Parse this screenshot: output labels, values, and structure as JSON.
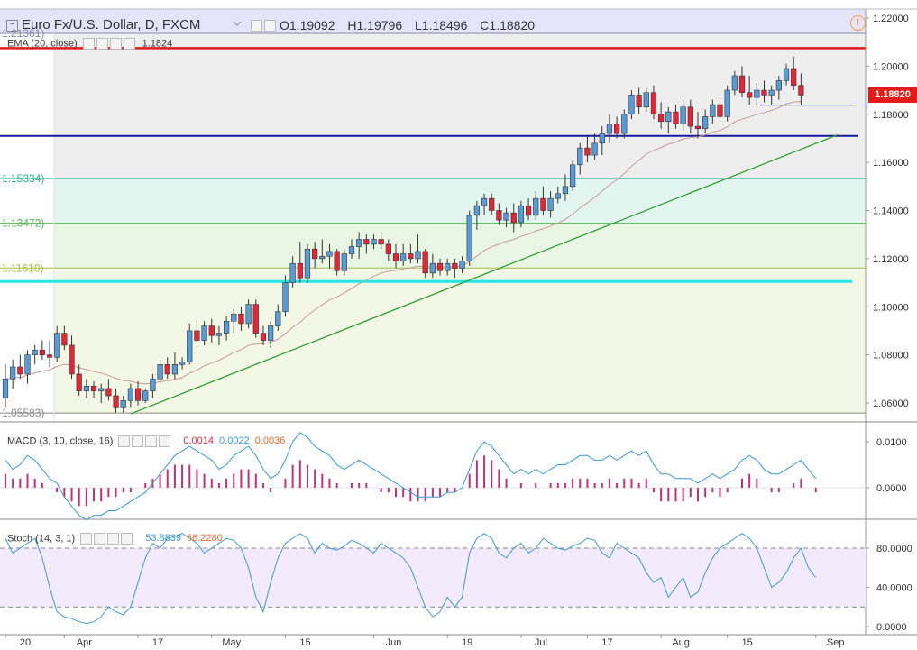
{
  "header": {
    "title": "Euro Fx/U.S. Dollar, D, FXCM",
    "ohlc": {
      "o": "O1.19092",
      "h": "H1.19796",
      "l": "L1.18496",
      "c": "C1.18820"
    },
    "collapse_glyph": "−",
    "alert_glyph": "!"
  },
  "price_tag": "1.18820",
  "ema": {
    "label": "EMA (20, close)",
    "value": "1.1824"
  },
  "macd": {
    "label": "MACD (3, 10, close, 16)",
    "v1": "0.0014",
    "v2": "0.0022",
    "v3": "0.0036"
  },
  "stoch": {
    "label": "Stoch (14, 3, 1)",
    "v1": "53.8839",
    "v2": "56.2280"
  },
  "icons": [
    "collapse-icon",
    "alert-icon",
    "settings-icon",
    "hide-icon",
    "close-icon"
  ],
  "colors": {
    "up": "#5b9bd5",
    "down": "#e3263a",
    "ema": "#c99a9a",
    "macd_line": "#3a9ad9",
    "macd_hist": "#c1307d",
    "stoch_k": "#3a9ad9",
    "red_line": "#e31b1b",
    "blue_line": "#1a1aa0",
    "cyan_line": "#25e6e6",
    "trend": "#2a9a2a"
  },
  "chart_data": {
    "type": "candlestick",
    "price_axis": {
      "min": 1.05,
      "max": 1.22,
      "ticks": [
        "1.22000",
        "1.20000",
        "1.18000",
        "1.16000",
        "1.14000",
        "1.12000",
        "1.10000",
        "1.08000",
        "1.06000"
      ]
    },
    "x_ticks": [
      {
        "label": "20",
        "i": 0
      },
      {
        "label": "Apr",
        "i": 8
      },
      {
        "label": "17",
        "i": 18
      },
      {
        "label": "May",
        "i": 28
      },
      {
        "label": "15",
        "i": 38
      },
      {
        "label": "Jun",
        "i": 50
      },
      {
        "label": "19",
        "i": 60
      },
      {
        "label": "Jul",
        "i": 70
      },
      {
        "label": "17",
        "i": 79
      },
      {
        "label": "Aug",
        "i": 89
      },
      {
        "label": "15",
        "i": 98
      },
      {
        "label": "Sep",
        "i": 110
      }
    ],
    "fib_levels": [
      {
        "label": "1.21361)",
        "value": 1.21361
      },
      {
        "label": "1.15334)",
        "value": 1.15334
      },
      {
        "label": "1.13472)",
        "value": 1.13472
      },
      {
        "label": "1.11610)",
        "value": 1.1161
      },
      {
        "label": "1.05583)",
        "value": 1.05583
      }
    ],
    "horizontal_lines": {
      "red": 1.2075,
      "blue": 1.171,
      "cyan": 1.1105,
      "short_blue": 1.1838
    },
    "trendline": {
      "from": {
        "i": 17,
        "price": 1.0555
      },
      "to": {
        "i": 113,
        "price": 1.1715
      }
    },
    "ohlc": [
      [
        1.062,
        1.076,
        1.058,
        1.07
      ],
      [
        1.07,
        1.078,
        1.066,
        1.075
      ],
      [
        1.075,
        1.08,
        1.07,
        1.072
      ],
      [
        1.072,
        1.082,
        1.068,
        1.08
      ],
      [
        1.08,
        1.084,
        1.076,
        1.082
      ],
      [
        1.082,
        1.086,
        1.078,
        1.08
      ],
      [
        1.08,
        1.086,
        1.075,
        1.079
      ],
      [
        1.079,
        1.092,
        1.077,
        1.089
      ],
      [
        1.089,
        1.092,
        1.082,
        1.084
      ],
      [
        1.084,
        1.088,
        1.07,
        1.072
      ],
      [
        1.072,
        1.076,
        1.063,
        1.065
      ],
      [
        1.065,
        1.07,
        1.062,
        1.067
      ],
      [
        1.067,
        1.069,
        1.062,
        1.065
      ],
      [
        1.065,
        1.068,
        1.06,
        1.066
      ],
      [
        1.066,
        1.07,
        1.061,
        1.063
      ],
      [
        1.063,
        1.066,
        1.056,
        1.058
      ],
      [
        1.058,
        1.063,
        1.056,
        1.061
      ],
      [
        1.061,
        1.068,
        1.058,
        1.066
      ],
      [
        1.066,
        1.069,
        1.059,
        1.061
      ],
      [
        1.061,
        1.066,
        1.06,
        1.065
      ],
      [
        1.065,
        1.072,
        1.062,
        1.07
      ],
      [
        1.07,
        1.078,
        1.068,
        1.076
      ],
      [
        1.076,
        1.079,
        1.07,
        1.072
      ],
      [
        1.072,
        1.081,
        1.07,
        1.076
      ],
      [
        1.076,
        1.079,
        1.074,
        1.077
      ],
      [
        1.077,
        1.093,
        1.076,
        1.09
      ],
      [
        1.09,
        1.094,
        1.083,
        1.086
      ],
      [
        1.086,
        1.094,
        1.084,
        1.092
      ],
      [
        1.092,
        1.095,
        1.085,
        1.088
      ],
      [
        1.088,
        1.092,
        1.084,
        1.089
      ],
      [
        1.089,
        1.096,
        1.086,
        1.094
      ],
      [
        1.094,
        1.099,
        1.089,
        1.097
      ],
      [
        1.097,
        1.1,
        1.09,
        1.093
      ],
      [
        1.093,
        1.103,
        1.091,
        1.101
      ],
      [
        1.101,
        1.103,
        1.087,
        1.089
      ],
      [
        1.089,
        1.092,
        1.084,
        1.086
      ],
      [
        1.086,
        1.094,
        1.083,
        1.092
      ],
      [
        1.092,
        1.101,
        1.09,
        1.098
      ],
      [
        1.098,
        1.113,
        1.096,
        1.11
      ],
      [
        1.11,
        1.121,
        1.108,
        1.118
      ],
      [
        1.118,
        1.127,
        1.11,
        1.112
      ],
      [
        1.112,
        1.126,
        1.11,
        1.124
      ],
      [
        1.124,
        1.127,
        1.116,
        1.12
      ],
      [
        1.12,
        1.128,
        1.118,
        1.121
      ],
      [
        1.121,
        1.126,
        1.116,
        1.123
      ],
      [
        1.123,
        1.124,
        1.113,
        1.115
      ],
      [
        1.115,
        1.124,
        1.113,
        1.122
      ],
      [
        1.122,
        1.128,
        1.12,
        1.125
      ],
      [
        1.125,
        1.131,
        1.12,
        1.128
      ],
      [
        1.128,
        1.13,
        1.122,
        1.126
      ],
      [
        1.126,
        1.13,
        1.124,
        1.128
      ],
      [
        1.128,
        1.131,
        1.124,
        1.126
      ],
      [
        1.126,
        1.128,
        1.119,
        1.122
      ],
      [
        1.122,
        1.126,
        1.116,
        1.119
      ],
      [
        1.119,
        1.126,
        1.117,
        1.122
      ],
      [
        1.122,
        1.126,
        1.118,
        1.12
      ],
      [
        1.12,
        1.13,
        1.118,
        1.123
      ],
      [
        1.123,
        1.124,
        1.112,
        1.114
      ],
      [
        1.114,
        1.122,
        1.112,
        1.118
      ],
      [
        1.118,
        1.12,
        1.113,
        1.115
      ],
      [
        1.115,
        1.12,
        1.113,
        1.118
      ],
      [
        1.118,
        1.12,
        1.112,
        1.116
      ],
      [
        1.116,
        1.121,
        1.114,
        1.119
      ],
      [
        1.119,
        1.14,
        1.117,
        1.138
      ],
      [
        1.138,
        1.144,
        1.132,
        1.142
      ],
      [
        1.142,
        1.147,
        1.138,
        1.145
      ],
      [
        1.145,
        1.147,
        1.138,
        1.14
      ],
      [
        1.14,
        1.143,
        1.134,
        1.136
      ],
      [
        1.136,
        1.141,
        1.133,
        1.139
      ],
      [
        1.139,
        1.143,
        1.131,
        1.135
      ],
      [
        1.135,
        1.144,
        1.133,
        1.142
      ],
      [
        1.142,
        1.145,
        1.136,
        1.138
      ],
      [
        1.138,
        1.148,
        1.136,
        1.145
      ],
      [
        1.145,
        1.15,
        1.138,
        1.14
      ],
      [
        1.14,
        1.148,
        1.137,
        1.145
      ],
      [
        1.145,
        1.15,
        1.143,
        1.147
      ],
      [
        1.147,
        1.155,
        1.144,
        1.15
      ],
      [
        1.15,
        1.161,
        1.148,
        1.159
      ],
      [
        1.159,
        1.168,
        1.155,
        1.166
      ],
      [
        1.166,
        1.171,
        1.16,
        1.163
      ],
      [
        1.163,
        1.172,
        1.161,
        1.168
      ],
      [
        1.168,
        1.175,
        1.163,
        1.172
      ],
      [
        1.172,
        1.18,
        1.168,
        1.176
      ],
      [
        1.176,
        1.179,
        1.17,
        1.172
      ],
      [
        1.172,
        1.182,
        1.17,
        1.18
      ],
      [
        1.18,
        1.19,
        1.178,
        1.188
      ],
      [
        1.188,
        1.191,
        1.18,
        1.183
      ],
      [
        1.183,
        1.191,
        1.181,
        1.189
      ],
      [
        1.189,
        1.192,
        1.178,
        1.18
      ],
      [
        1.18,
        1.185,
        1.174,
        1.177
      ],
      [
        1.177,
        1.183,
        1.172,
        1.181
      ],
      [
        1.181,
        1.184,
        1.174,
        1.176
      ],
      [
        1.176,
        1.186,
        1.173,
        1.183
      ],
      [
        1.183,
        1.186,
        1.172,
        1.175
      ],
      [
        1.175,
        1.181,
        1.17,
        1.174
      ],
      [
        1.174,
        1.182,
        1.172,
        1.179
      ],
      [
        1.179,
        1.186,
        1.176,
        1.184
      ],
      [
        1.184,
        1.187,
        1.177,
        1.179
      ],
      [
        1.179,
        1.192,
        1.177,
        1.19
      ],
      [
        1.19,
        1.198,
        1.188,
        1.196
      ],
      [
        1.196,
        1.2,
        1.187,
        1.189
      ],
      [
        1.189,
        1.196,
        1.184,
        1.187
      ],
      [
        1.187,
        1.193,
        1.184,
        1.19
      ],
      [
        1.19,
        1.194,
        1.185,
        1.188
      ],
      [
        1.188,
        1.192,
        1.184,
        1.19
      ],
      [
        1.19,
        1.196,
        1.186,
        1.194
      ],
      [
        1.194,
        1.201,
        1.192,
        1.199
      ],
      [
        1.199,
        1.204,
        1.19,
        1.192
      ],
      [
        1.192,
        1.197,
        1.184,
        1.188
      ]
    ],
    "macd_line": [
      0.006,
      0.004,
      0.005,
      0.007,
      0.006,
      0.004,
      0.002,
      0.001,
      -0.002,
      -0.004,
      -0.006,
      -0.007,
      -0.006,
      -0.006,
      -0.005,
      -0.005,
      -0.004,
      -0.003,
      -0.002,
      -0.001,
      0.001,
      0.003,
      0.005,
      0.007,
      0.008,
      0.009,
      0.008,
      0.007,
      0.006,
      0.004,
      0.005,
      0.007,
      0.008,
      0.009,
      0.007,
      0.004,
      0.002,
      0.003,
      0.006,
      0.01,
      0.012,
      0.011,
      0.009,
      0.008,
      0.007,
      0.005,
      0.004,
      0.005,
      0.006,
      0.005,
      0.004,
      0.003,
      0.002,
      0.001,
      0.0,
      -0.001,
      -0.002,
      -0.002,
      -0.002,
      -0.002,
      -0.001,
      -0.001,
      0.0,
      0.004,
      0.008,
      0.01,
      0.009,
      0.007,
      0.005,
      0.003,
      0.004,
      0.003,
      0.004,
      0.003,
      0.004,
      0.005,
      0.005,
      0.006,
      0.007,
      0.007,
      0.006,
      0.006,
      0.007,
      0.006,
      0.007,
      0.008,
      0.007,
      0.008,
      0.005,
      0.003,
      0.003,
      0.002,
      0.002,
      0.002,
      0.001,
      0.002,
      0.003,
      0.002,
      0.003,
      0.004,
      0.006,
      0.007,
      0.006,
      0.004,
      0.003,
      0.003,
      0.004,
      0.005,
      0.006,
      0.004,
      0.002
    ],
    "macd_hist": [
      0.003,
      0.002,
      0.002,
      0.003,
      0.002,
      0.001,
      0.0,
      -0.001,
      -0.002,
      -0.003,
      -0.004,
      -0.004,
      -0.003,
      -0.003,
      -0.002,
      -0.002,
      -0.001,
      -0.001,
      0.0,
      0.001,
      0.002,
      0.003,
      0.004,
      0.005,
      0.005,
      0.005,
      0.004,
      0.003,
      0.002,
      0.001,
      0.002,
      0.003,
      0.004,
      0.004,
      0.003,
      0.001,
      -0.001,
      0.0,
      0.002,
      0.005,
      0.006,
      0.005,
      0.004,
      0.003,
      0.002,
      0.001,
      0.0,
      0.001,
      0.001,
      0.001,
      0.0,
      -0.001,
      -0.001,
      -0.002,
      -0.002,
      -0.003,
      -0.003,
      -0.003,
      -0.002,
      -0.002,
      -0.001,
      -0.001,
      0.0,
      0.003,
      0.006,
      0.007,
      0.006,
      0.004,
      0.002,
      0.0,
      0.001,
      0.0,
      0.001,
      0.0,
      0.001,
      0.001,
      0.001,
      0.002,
      0.002,
      0.002,
      0.001,
      0.001,
      0.002,
      0.001,
      0.002,
      0.002,
      0.001,
      0.002,
      -0.001,
      -0.003,
      -0.003,
      -0.003,
      -0.003,
      -0.002,
      -0.003,
      -0.002,
      -0.001,
      -0.002,
      -0.001,
      0.0,
      0.002,
      0.003,
      0.002,
      0.0,
      -0.001,
      -0.001,
      0.0,
      0.001,
      0.002,
      0.0,
      -0.001
    ],
    "stoch_k": [
      90,
      75,
      80,
      85,
      90,
      70,
      40,
      15,
      10,
      8,
      5,
      3,
      5,
      10,
      20,
      15,
      12,
      20,
      45,
      70,
      85,
      80,
      90,
      92,
      95,
      90,
      85,
      75,
      80,
      85,
      90,
      88,
      80,
      60,
      30,
      15,
      45,
      70,
      85,
      90,
      95,
      90,
      75,
      85,
      80,
      78,
      82,
      88,
      85,
      80,
      75,
      85,
      80,
      75,
      70,
      60,
      40,
      20,
      10,
      15,
      30,
      20,
      30,
      75,
      90,
      95,
      90,
      75,
      70,
      80,
      85,
      75,
      80,
      90,
      85,
      80,
      78,
      82,
      85,
      90,
      88,
      75,
      70,
      85,
      80,
      75,
      70,
      55,
      45,
      50,
      30,
      40,
      50,
      30,
      35,
      55,
      70,
      80,
      85,
      90,
      95,
      90,
      80,
      60,
      40,
      45,
      55,
      70,
      80,
      60,
      50
    ],
    "stoch_axis": {
      "min": 0,
      "max": 100,
      "ticks": [
        "80.0000",
        "40.0000",
        "0.0000"
      ],
      "bands": [
        80,
        20
      ]
    },
    "macd_axis": {
      "ticks": [
        "0.0100",
        "0.0000"
      ]
    }
  }
}
